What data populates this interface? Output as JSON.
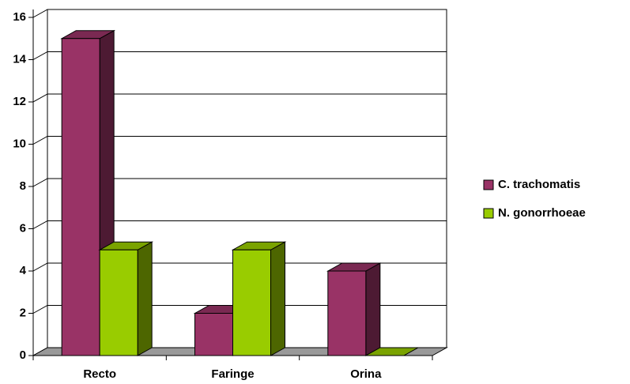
{
  "chart_data": {
    "type": "bar3d",
    "categories": [
      "Recto",
      "Faringe",
      "Orina"
    ],
    "series": [
      {
        "name": "C. trachomatis",
        "color": "#993366",
        "values": [
          15,
          2,
          4
        ]
      },
      {
        "name": "N. gonorrhoeae",
        "color": "#99cc00",
        "values": [
          5,
          5,
          0
        ]
      }
    ],
    "ylim": [
      0,
      16
    ],
    "yticks": [
      0,
      2,
      4,
      6,
      8,
      10,
      12,
      14,
      16
    ],
    "grid": true,
    "legend": "right"
  }
}
